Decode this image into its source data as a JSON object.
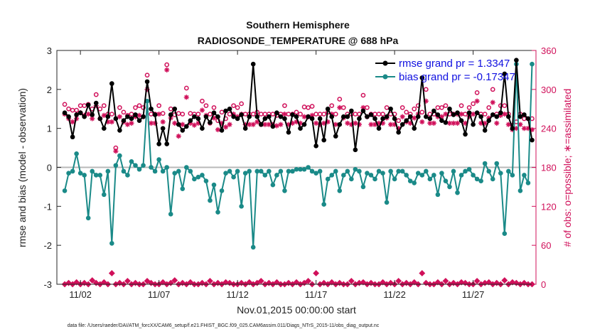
{
  "chart_data": {
    "type": "line",
    "title": "Southern Hemisphere",
    "subtitle": "RADIOSONDE_TEMPERATURE @ 688 hPa",
    "xlabel": "Nov.01,2015 00:00:00 start",
    "ylabel": "rmse and bias (model - observation)",
    "y2label": "# of obs: o=possible; ∗=assimilated",
    "footnote": "data file: /Users/raeder/DAI/ATM_forcXX/CAM6_setup/f.e21.FHIST_BGC.f09_025.CAM6assim.011/Diags_NTrS_2015-11/obs_diag_output.nc",
    "xlim": [
      0.5,
      31.0
    ],
    "ylim": [
      -3,
      3
    ],
    "y2lim": [
      0,
      360
    ],
    "yticks": [
      "-3",
      "-2",
      "-1",
      "0",
      "1",
      "2",
      "3"
    ],
    "y2ticks": [
      "0",
      "60",
      "120",
      "180",
      "240",
      "300",
      "360"
    ],
    "xtick_values": [
      2,
      7,
      12,
      17,
      22,
      27
    ],
    "xtick_labels": [
      "11/02",
      "11/07",
      "11/12",
      "11/17",
      "11/22",
      "11/27"
    ],
    "x": [
      1.0,
      1.25,
      1.5,
      1.75,
      2.0,
      2.25,
      2.5,
      2.75,
      3.0,
      3.25,
      3.5,
      3.75,
      4.0,
      4.25,
      4.5,
      4.75,
      5.0,
      5.25,
      5.5,
      5.75,
      6.0,
      6.25,
      6.5,
      6.75,
      7.0,
      7.25,
      7.5,
      7.75,
      8.0,
      8.25,
      8.5,
      8.75,
      9.0,
      9.25,
      9.5,
      9.75,
      10.0,
      10.25,
      10.5,
      10.75,
      11.0,
      11.25,
      11.5,
      11.75,
      12.0,
      12.25,
      12.5,
      12.75,
      13.0,
      13.25,
      13.5,
      13.75,
      14.0,
      14.25,
      14.5,
      14.75,
      15.0,
      15.25,
      15.5,
      15.75,
      16.0,
      16.25,
      16.5,
      16.75,
      17.0,
      17.25,
      17.5,
      17.75,
      18.0,
      18.25,
      18.5,
      18.75,
      19.0,
      19.25,
      19.5,
      19.75,
      20.0,
      20.25,
      20.5,
      20.75,
      21.0,
      21.25,
      21.5,
      21.75,
      22.0,
      22.25,
      22.5,
      22.75,
      23.0,
      23.25,
      23.5,
      23.75,
      24.0,
      24.25,
      24.5,
      24.75,
      25.0,
      25.25,
      25.5,
      25.75,
      26.0,
      26.25,
      26.5,
      26.75,
      27.0,
      27.25,
      27.5,
      27.75,
      28.0,
      28.25,
      28.5,
      28.75,
      29.0,
      29.25,
      29.5,
      29.75,
      30.0,
      30.25,
      30.5,
      30.75
    ],
    "series": [
      {
        "name": "rmse",
        "legend": "rmse grand pr = 1.3347",
        "color": "#000000",
        "axis": "left",
        "values": [
          1.4,
          1.3,
          0.78,
          1.35,
          1.4,
          1.3,
          1.6,
          1.35,
          1.65,
          1.25,
          1.0,
          1.3,
          2.15,
          1.25,
          0.95,
          1.2,
          1.3,
          1.25,
          1.35,
          1.2,
          1.3,
          2.2,
          1.5,
          1.35,
          0.6,
          1.0,
          0.6,
          1.35,
          1.5,
          1.1,
          0.95,
          1.05,
          1.2,
          1.3,
          1.25,
          1.0,
          1.3,
          1.15,
          1.4,
          1.3,
          0.95,
          1.45,
          1.5,
          1.3,
          1.25,
          1.35,
          1.0,
          1.3,
          2.65,
          1.3,
          1.1,
          1.25,
          1.3,
          1.05,
          1.4,
          1.3,
          1.25,
          0.9,
          1.35,
          1.3,
          1.0,
          1.1,
          1.3,
          1.25,
          0.55,
          1.25,
          0.7,
          1.5,
          1.3,
          0.8,
          1.1,
          1.3,
          1.3,
          1.45,
          0.45,
          1.25,
          1.45,
          1.3,
          1.35,
          1.25,
          1.0,
          1.25,
          1.3,
          1.5,
          1.25,
          0.9,
          1.1,
          1.2,
          1.3,
          1.0,
          1.3,
          2.3,
          1.3,
          1.25,
          1.45,
          1.35,
          1.2,
          1.15,
          1.5,
          1.35,
          1.4,
          1.2,
          0.85,
          1.4,
          1.1,
          1.4,
          1.3,
          0.95,
          1.2,
          1.35,
          1.3,
          1.4,
          2.4,
          1.3,
          1.0,
          2.75,
          1.3,
          1.35,
          1.25,
          0.7
        ]
      },
      {
        "name": "bias",
        "legend": "bias grand pr = -0.17347",
        "color": "#1a8a88",
        "axis": "left",
        "values": [
          -0.6,
          -0.15,
          -0.1,
          0.35,
          -0.15,
          -0.2,
          -1.3,
          -0.1,
          -0.2,
          -0.2,
          -0.7,
          -0.1,
          -1.95,
          0.05,
          0.3,
          -0.1,
          -0.2,
          0.15,
          0.05,
          -0.05,
          0.05,
          1.7,
          0.0,
          -0.1,
          0.2,
          -0.1,
          0.0,
          -1.2,
          -0.15,
          -0.1,
          -0.55,
          0.0,
          -0.1,
          -0.3,
          -0.25,
          -0.2,
          -0.35,
          -0.85,
          -0.45,
          -1.15,
          -0.6,
          -0.15,
          -0.1,
          -0.25,
          -0.1,
          -1.0,
          -0.15,
          -0.1,
          -2.05,
          -0.1,
          -0.1,
          -0.2,
          -0.1,
          -0.45,
          -0.2,
          -0.1,
          -0.6,
          -0.1,
          -0.1,
          -0.05,
          -0.05,
          -0.05,
          0.0,
          -0.1,
          -0.15,
          -0.1,
          -0.95,
          -0.3,
          -0.2,
          -0.1,
          -0.6,
          -0.2,
          -0.1,
          -0.3,
          -0.05,
          -0.1,
          -0.5,
          -0.15,
          -0.2,
          -0.3,
          -0.1,
          -0.15,
          -0.9,
          -0.1,
          -0.3,
          -0.1,
          -0.1,
          -0.2,
          -0.35,
          -0.4,
          -0.15,
          -0.2,
          -0.1,
          -0.3,
          -0.2,
          -0.7,
          -0.15,
          -0.35,
          -0.5,
          -0.1,
          -0.65,
          -0.2,
          -0.1,
          -0.05,
          -0.2,
          -0.3,
          -0.35,
          0.1,
          -0.1,
          -0.3,
          0.1,
          -0.15,
          -1.7,
          -0.1,
          -0.2,
          2.65,
          -0.6,
          -0.2,
          -0.4,
          2.65
        ]
      },
      {
        "name": "obs_possible",
        "legend": "o=possible",
        "color": "#d0105a",
        "axis": "right",
        "values": [
          277,
          270,
          268,
          268,
          275,
          275,
          277,
          270,
          292,
          270,
          275,
          262,
          262,
          210,
          272,
          265,
          260,
          262,
          272,
          275,
          272,
          322,
          262,
          262,
          275,
          263,
          338,
          270,
          261,
          263,
          262,
          302,
          263,
          262,
          262,
          282,
          275,
          262,
          272,
          252,
          265,
          255,
          262,
          275,
          272,
          278,
          262,
          262,
          262,
          265,
          262,
          262,
          262,
          262,
          260,
          262,
          275,
          262,
          262,
          265,
          262,
          273,
          272,
          274,
          262,
          262,
          262,
          265,
          275,
          262,
          285,
          272,
          262,
          262,
          262,
          262,
          291,
          272,
          262,
          262,
          262,
          262,
          272,
          262,
          262,
          252,
          272,
          265,
          262,
          270,
          275,
          265,
          300,
          262,
          262,
          272,
          272,
          275,
          262,
          262,
          262,
          275,
          262,
          272,
          278,
          295,
          262,
          262,
          272,
          300,
          262,
          275,
          275,
          262,
          245,
          250,
          262,
          255,
          255,
          255
        ]
      },
      {
        "name": "obs_assimilated",
        "legend": "∗=assimilated",
        "color": "#d0105a",
        "axis": "right",
        "values": [
          262,
          255,
          250,
          255,
          264,
          260,
          262,
          255,
          275,
          255,
          260,
          250,
          250,
          205,
          258,
          250,
          246,
          248,
          258,
          260,
          258,
          300,
          248,
          248,
          262,
          250,
          330,
          256,
          248,
          228,
          246,
          288,
          248,
          245,
          248,
          268,
          260,
          248,
          256,
          238,
          248,
          242,
          246,
          262,
          258,
          262,
          246,
          246,
          246,
          250,
          246,
          246,
          246,
          246,
          244,
          246,
          262,
          246,
          248,
          250,
          248,
          258,
          258,
          260,
          248,
          246,
          248,
          250,
          262,
          246,
          272,
          256,
          248,
          246,
          248,
          246,
          272,
          258,
          246,
          246,
          248,
          248,
          256,
          246,
          246,
          240,
          258,
          250,
          248,
          256,
          262,
          250,
          282,
          248,
          248,
          258,
          258,
          262,
          248,
          248,
          248,
          262,
          248,
          258,
          262,
          282,
          248,
          248,
          256,
          280,
          248,
          260,
          262,
          246,
          238,
          240,
          246,
          240,
          240,
          238
        ]
      },
      {
        "name": "obs_possible_bottom",
        "legend": "",
        "color": "#d0105a",
        "axis": "right",
        "values": [
          0,
          2,
          0,
          3,
          0,
          2,
          0,
          6,
          2,
          0,
          3,
          0,
          17,
          0,
          2,
          0,
          5,
          0,
          2,
          0,
          0,
          5,
          2,
          0,
          0,
          3,
          0,
          2,
          6,
          0,
          2,
          0,
          3,
          0,
          0,
          2,
          0,
          5,
          0,
          2,
          0,
          3,
          2,
          0,
          0,
          2,
          0,
          3,
          0,
          2,
          5,
          0,
          2,
          0,
          3,
          0,
          0,
          2,
          0,
          3,
          0,
          2,
          5,
          0,
          17,
          0,
          2,
          0,
          3,
          0,
          2,
          0,
          0,
          5,
          0,
          2,
          3,
          0,
          2,
          0,
          0,
          3,
          0,
          2,
          0,
          5,
          0,
          2,
          0,
          3,
          0,
          17,
          2,
          0,
          0,
          3,
          0,
          5,
          0,
          2,
          0,
          3,
          2,
          0,
          0,
          5,
          0,
          2,
          3,
          0,
          2,
          0,
          6,
          0,
          3,
          2,
          0,
          2,
          0,
          0
        ]
      }
    ]
  }
}
